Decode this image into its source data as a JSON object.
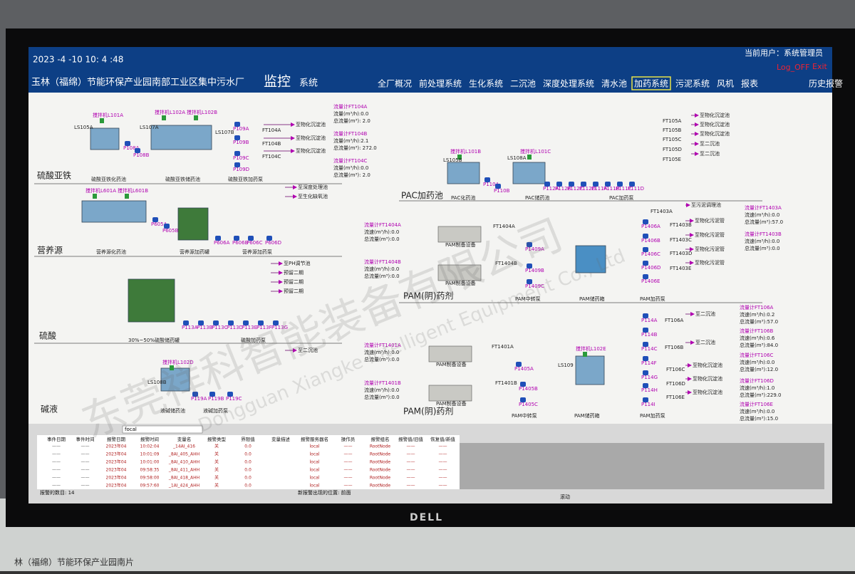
{
  "header": {
    "datetime": "2023 -4  -10  10: 4  :48",
    "plant": "玉林（福绵）节能环保产业园南部工业区集中污水厂",
    "monitor": "监控",
    "system": "系统",
    "user": "当前用户：系统管理员",
    "logoff": "Log_OFF",
    "exit": "Exit"
  },
  "nav": {
    "items": [
      "全厂概况",
      "前处理系统",
      "生化系统",
      "二沉池",
      "深度处理系统",
      "清水池",
      "加药系统",
      "污泥系统",
      "风机",
      "报表",
      "历史报警"
    ],
    "active": 6
  },
  "sections": [
    {
      "name": "硫酸亚铁",
      "tags": [
        "搅拌机L101A",
        "搅拌机L102A",
        "搅拌机L102B"
      ],
      "levels": [
        "LS105A",
        "LS107A",
        "LS107B"
      ],
      "pumps": [
        "P108A",
        "P108B",
        "P109A",
        "P109B",
        "P109C",
        "P109D"
      ],
      "meters": [
        "FT104A",
        "FT104B",
        "FT104C"
      ],
      "outlets": [
        "至物化沉淀池",
        "至物化沉淀池",
        "至物化沉淀池"
      ],
      "captions": [
        "硫酸亚铁化药池",
        "硫酸亚铁储药池",
        "硫酸亚铁加药泵"
      ]
    },
    {
      "name": "营养源",
      "tags": [
        "搅拌机L601A",
        "搅拌机L601B"
      ],
      "pumps": [
        "P605A",
        "P605B",
        "P606A",
        "P606B",
        "P606C",
        "P606D"
      ],
      "outlets": [
        "至深度处理池",
        "至生化缺氧池"
      ],
      "captions": [
        "营养源化药池",
        "营养源加药罐",
        "营养源加药泵"
      ]
    },
    {
      "name": "硫酸",
      "pumps": [
        "P113A",
        "P113B",
        "P113C",
        "P113D",
        "P113E",
        "P113F",
        "P113G"
      ],
      "outlets": [
        "至PH调节池",
        "预留二期",
        "预留二期",
        "预留二期"
      ],
      "captions": [
        "30%~50%硫酸储药罐",
        "硫酸加药泵"
      ]
    },
    {
      "name": "碱液",
      "tags": [
        "搅拌机L102D"
      ],
      "levels": [
        "LS108B"
      ],
      "pumps": [
        "P119A",
        "P119B",
        "P119C"
      ],
      "outlets": [
        "至二沉池"
      ],
      "captions": [
        "液碱储药池",
        "液碱加药泵"
      ]
    },
    {
      "name": "PAC加药池",
      "tags": [
        "搅拌机L101B",
        "搅拌机L101C"
      ],
      "levels": [
        "LS105B",
        "LS108A"
      ],
      "pumps": [
        "P110A",
        "P110B",
        "P112A",
        "P112B",
        "P112C",
        "P112D",
        "P111A",
        "P111B",
        "P111C",
        "P111D"
      ],
      "meters": [
        "FT105A",
        "FT105B",
        "FT105C",
        "FT105D",
        "FT105E"
      ],
      "outlets": [
        "至物化沉淀池",
        "至物化沉淀池",
        "至物化沉淀池",
        "至二沉池",
        "至二沉池"
      ],
      "captions": [
        "PAC化药池",
        "PAC储药池",
        "PAC加药泵"
      ]
    },
    {
      "name": "PAM(阴)药剂",
      "devices": [
        "PAM制备设备",
        "PAM制备设备"
      ],
      "meters": [
        "FT1404A",
        "FT1404B",
        "FT1403A",
        "FT1403B",
        "FT1403C",
        "FT1403D",
        "FT1403E"
      ],
      "pumps": [
        "P1409A",
        "P1409B",
        "P1409C",
        "P1406A",
        "P1406B",
        "P1406C",
        "P1406D",
        "P1406E"
      ],
      "outlets": [
        "至污泥调理池",
        "至物化污泥管",
        "至物化污泥管",
        "至物化污泥管",
        "至物化污泥管"
      ],
      "captions": [
        "PAM中转泵",
        "PAM储药箱",
        "PAM加药泵"
      ]
    },
    {
      "name": "PAM(阴)药剂",
      "tags": [
        "搅拌机L102E"
      ],
      "levels": [
        "LS109"
      ],
      "devices": [
        "PAM制备设备",
        "PAM制备设备"
      ],
      "meters": [
        "FT1401A",
        "FT1401B",
        "FT106A",
        "FT106B",
        "FT106C",
        "FT106D",
        "FT106E"
      ],
      "pumps": [
        "P1405A",
        "P1405B",
        "P1405C",
        "P114A",
        "P114B",
        "P114C",
        "P114F",
        "P114G",
        "P114H",
        "P114I"
      ],
      "outlets": [
        "至二沉池",
        "至二沉池",
        "至物化沉淀池",
        "至物化沉淀池",
        "至物化沉淀池"
      ],
      "captions": [
        "PAM中转泵",
        "PAM储药箱",
        "PAM加药泵"
      ]
    }
  ],
  "flowmeters": [
    {
      "name": "流量计FT104A",
      "rate": "流量(m³/h):0.0",
      "total": "总流量(m³): 2.0"
    },
    {
      "name": "流量计FT104B",
      "rate": "流量(m³/h):2.1",
      "total": "总流量(m³): 272.0"
    },
    {
      "name": "流量计FT104C",
      "rate": "流量(m³/h):0.0",
      "total": "总流量(m³): 2.0"
    },
    {
      "name": "流量计FT1404A",
      "rate": "流速(m³/h):0.0",
      "total": "总流量(m³):0.0"
    },
    {
      "name": "流量计FT1404B",
      "rate": "流速(m³/h):0.0",
      "total": "总流量(m³):0.0"
    },
    {
      "name": "流量计FT1403A",
      "rate": "流速(m³/h):0.0",
      "total": "总流量(m³):57.0"
    },
    {
      "name": "流量计FT1403B",
      "rate": "流速(m³/h):0.0",
      "total": "总流量(m³):0.0"
    },
    {
      "name": "流量计FT1401A",
      "rate": "流速(m³/h):0.0",
      "total": "总流量(m³):0.0"
    },
    {
      "name": "流量计FT1401B",
      "rate": "流速(m³/h):0.0",
      "total": "总流量(m³):0.0"
    },
    {
      "name": "流量计FT106A",
      "rate": "流速(m³/h):0.2",
      "total": "总流量(m³):57.0"
    },
    {
      "name": "流量计FT106B",
      "rate": "流速(m³/h):0.6",
      "total": "总流量(m³):84.0"
    },
    {
      "name": "流量计FT106C",
      "rate": "流速(m³/h):0.0",
      "total": "总流量(m³):12.0"
    },
    {
      "name": "流量计FT106D",
      "rate": "流速(m³/h):1.0",
      "total": "总流量(m³):229.0"
    },
    {
      "name": "流量计FT106E",
      "rate": "流速(m³/h):0.0",
      "total": "总流量(m³):15.0"
    }
  ],
  "alarm": {
    "filter": "focal",
    "columns": [
      "事件日期",
      "事件时间",
      "报警日期",
      "报警时间",
      "变量名",
      "报警类型",
      "界限值",
      "变量描述",
      "报警服务器名",
      "操作员",
      "报警组名",
      "报警值/旧值",
      "恢复值/新值"
    ],
    "rows": [
      [
        "——",
        "——",
        "2023年04",
        "10:02:04",
        "_14AI_416",
        "关",
        "0.0",
        null,
        "local",
        "——",
        "RootNode",
        "——",
        "——"
      ],
      [
        "——",
        "——",
        "2023年04",
        "10:01:09",
        "_8AI_405_AHH",
        "关",
        "0.0",
        null,
        "local",
        "——",
        "RootNode",
        "——",
        "——"
      ],
      [
        "——",
        "——",
        "2023年04",
        "10:01:00",
        "_8AI_410_AHH",
        "关",
        "0.0",
        null,
        "local",
        "——",
        "RootNode",
        "——",
        "——"
      ],
      [
        "——",
        "——",
        "2023年04",
        "09:58:35",
        "_8AI_411_AHH",
        "关",
        "0.0",
        null,
        "local",
        "——",
        "RootNode",
        "——",
        "——"
      ],
      [
        "——",
        "——",
        "2023年04",
        "09:58:00",
        "_8AI_418_AHH",
        "关",
        "0.0",
        null,
        "local",
        "——",
        "RootNode",
        "——",
        "——"
      ],
      [
        "——",
        "——",
        "2023年04",
        "09:57:60",
        "_1AI_424_AHH",
        "关",
        "0.0",
        null,
        "local",
        "——",
        "RootNode",
        "——",
        "——"
      ]
    ],
    "count": "报警的数目: 14",
    "position": "新报警出现的位置: 前面",
    "scroll": "滚动"
  },
  "watermark": {
    "cn": "东莞祥科智能装备有限公司",
    "en": "Dongguan Xiangke Intelligent Equipment Co., Ltd"
  },
  "monitor": {
    "brand": "DELL"
  },
  "desk_note": "林（福绵）节能环保产业园南片"
}
